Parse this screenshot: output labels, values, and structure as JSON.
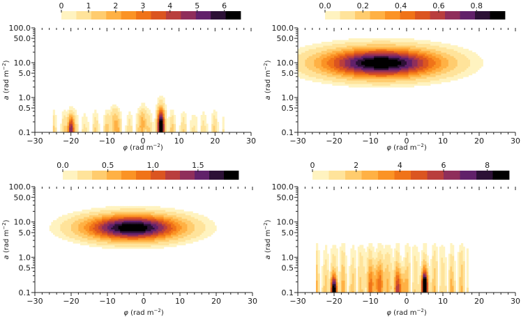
{
  "palette": [
    "#fff3c0",
    "#ffe39a",
    "#ffcc6e",
    "#ffb144",
    "#fb9325",
    "#f07318",
    "#db5520",
    "#b93e3d",
    "#8f2e5b",
    "#61216a",
    "#2c1136",
    "#000000"
  ],
  "chart_data": [
    {
      "id": "top-left",
      "type": "heatmap",
      "xlabel": "φ (rad m⁻²)",
      "xlabel_parts": [
        "φ",
        " (rad m",
        "−2",
        ")"
      ],
      "ylabel_parts": [
        "a",
        " (rad m",
        "−2",
        ")"
      ],
      "xlim": [
        -30,
        30
      ],
      "ylim": [
        0.1,
        100
      ],
      "xscale": "linear",
      "yscale": "log",
      "x_ticks": [
        -30,
        -20,
        -10,
        0,
        10,
        20,
        30
      ],
      "x_tick_labels": [
        "−30",
        "−20",
        "−10",
        "0",
        "10",
        "20",
        "30"
      ],
      "y_ticks": [
        0.1,
        0.5,
        1,
        5,
        10,
        50,
        100
      ],
      "y_tick_labels": [
        "0.1",
        "0.5",
        "1.0",
        "5.0",
        "10.0",
        "50.0",
        "100.0"
      ],
      "colorbar": {
        "min": 0,
        "max": 6.6,
        "ticks": [
          0,
          1,
          2,
          3,
          4,
          5,
          6
        ],
        "labels": [
          "0",
          "1",
          "2",
          "3",
          "4",
          "5",
          "6"
        ]
      },
      "blobs": [
        {
          "x": -20,
          "y": 0.12,
          "sx": 0.6,
          "sy": 0.28,
          "a": 5.0
        },
        {
          "x": 5,
          "y": 0.15,
          "sx": 0.7,
          "sy": 0.35,
          "a": 6.4
        },
        {
          "x": 0,
          "y": 0.18,
          "sx": 0.8,
          "sy": 0.3,
          "a": 1.8
        },
        {
          "x": -8,
          "y": 0.18,
          "sx": 0.8,
          "sy": 0.3,
          "a": 1.6
        }
      ],
      "stripes": {
        "xmin": -25,
        "xmax": 22.5,
        "period": 3.0,
        "amp": 1.2,
        "ymax": 0.6
      }
    },
    {
      "id": "top-right",
      "type": "heatmap",
      "xlabel_parts": [
        "φ",
        " (rad m",
        "−2",
        ")"
      ],
      "ylabel_parts": [
        "a",
        " (rad m",
        "−2",
        ")"
      ],
      "xlim": [
        -30,
        30
      ],
      "ylim": [
        0.1,
        100
      ],
      "xscale": "linear",
      "yscale": "log",
      "x_ticks": [
        -30,
        -20,
        -10,
        0,
        10,
        20,
        30
      ],
      "x_tick_labels": [
        "−30",
        "−20",
        "−10",
        "0",
        "10",
        "20",
        "30"
      ],
      "y_ticks": [
        0.1,
        0.5,
        1,
        5,
        10,
        50,
        100
      ],
      "y_tick_labels": [
        "0.1",
        "0.5",
        "1.0",
        "5.0",
        "10.0",
        "50.0",
        "100.0"
      ],
      "colorbar": {
        "min": 0,
        "max": 0.95,
        "ticks": [
          0,
          0.2,
          0.4,
          0.6,
          0.8
        ],
        "labels": [
          "0.0",
          "0.2",
          "0.4",
          "0.6",
          "0.8"
        ]
      },
      "blobs": [
        {
          "x": -7,
          "y": 10,
          "sx": 11,
          "sy": 0.28,
          "a": 0.98
        }
      ],
      "stripes": null
    },
    {
      "id": "bottom-left",
      "type": "heatmap",
      "xlabel_parts": [
        "φ",
        " (rad m",
        "−2",
        ")"
      ],
      "ylabel_parts": [
        "a",
        " (rad m",
        "−2",
        ")"
      ],
      "xlim": [
        -30,
        30
      ],
      "ylim": [
        0.1,
        100
      ],
      "xscale": "linear",
      "yscale": "log",
      "x_ticks": [
        -30,
        -20,
        -10,
        0,
        10,
        20,
        30
      ],
      "x_tick_labels": [
        "−30",
        "−20",
        "−10",
        "0",
        "10",
        "20",
        "30"
      ],
      "y_ticks": [
        0.1,
        0.5,
        1,
        5,
        10,
        50,
        100
      ],
      "y_tick_labels": [
        "0.1",
        "0.5",
        "1.0",
        "5.0",
        "10.0",
        "50.0",
        "100.0"
      ],
      "colorbar": {
        "min": 0,
        "max": 1.95,
        "ticks": [
          0,
          0.5,
          1.0,
          1.5
        ],
        "labels": [
          "0.0",
          "0.5",
          "1.0",
          "1.5"
        ]
      },
      "blobs": [
        {
          "x": -3,
          "y": 7,
          "sx": 9,
          "sy": 0.24,
          "a": 2.0
        }
      ],
      "stripes": null
    },
    {
      "id": "bottom-right",
      "type": "heatmap",
      "xlabel_parts": [
        "φ",
        " (rad m",
        "−2",
        ")"
      ],
      "ylabel_parts": [
        "a",
        " (rad m",
        "−2",
        ")"
      ],
      "xlim": [
        -30,
        30
      ],
      "ylim": [
        0.1,
        100
      ],
      "xscale": "linear",
      "yscale": "log",
      "x_ticks": [
        -30,
        -20,
        -10,
        0,
        10,
        20,
        30
      ],
      "x_tick_labels": [
        "−30",
        "−20",
        "−10",
        "0",
        "10",
        "20",
        "30"
      ],
      "y_ticks": [
        0.1,
        0.5,
        1,
        5,
        10,
        50,
        100
      ],
      "y_tick_labels": [
        "0.1",
        "0.5",
        "1.0",
        "5.0",
        "10.0",
        "50.0",
        "100.0"
      ],
      "colorbar": {
        "min": 0,
        "max": 9.0,
        "ticks": [
          0,
          2,
          4,
          6,
          8
        ],
        "labels": [
          "0",
          "2",
          "4",
          "6",
          "8"
        ]
      },
      "blobs": [
        {
          "x": -20,
          "y": 0.12,
          "sx": 0.6,
          "sy": 0.28,
          "a": 8.0
        },
        {
          "x": 5,
          "y": 0.14,
          "sx": 0.6,
          "sy": 0.32,
          "a": 8.8
        },
        {
          "x": -2,
          "y": 0.14,
          "sx": 1.2,
          "sy": 0.35,
          "a": 3.0
        },
        {
          "x": -8,
          "y": 0.2,
          "sx": 2.0,
          "sy": 0.4,
          "a": 2.5
        }
      ],
      "stripes": {
        "xmin": -25,
        "xmax": 17,
        "period": 2.5,
        "amp": 2.2,
        "ymax": 3.0
      },
      "halo": {
        "xmin": -30,
        "xmax": 24,
        "ymin": 0.1,
        "ymax": 40,
        "level": 0.35
      }
    }
  ]
}
